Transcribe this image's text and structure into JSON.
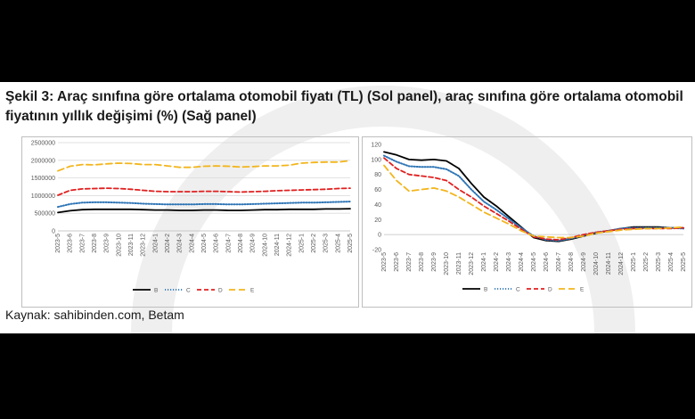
{
  "title": "Şekil 3: Araç sınıfına göre ortalama otomobil fiyatı (TL) (Sol panel), araç sınıfına göre ortalama otomobil fiyatının yıllık değişimi (%) (Sağ panel)",
  "source": "Kaynak: sahibinden.com, Betam",
  "colors": {
    "B": "#000000",
    "C": "#2e75b6",
    "D": "#e02020",
    "E": "#f2b51d"
  },
  "chart_data": [
    {
      "type": "line",
      "title": "",
      "xlabel": "",
      "ylabel": "",
      "ylim": [
        0,
        2500000
      ],
      "yticks": [
        "0",
        "500000",
        "1000000",
        "1500000",
        "2000000",
        "2500000"
      ],
      "categories": [
        "2023-5",
        "2023-6",
        "2023-7",
        "2023-8",
        "2023-9",
        "2023-10",
        "2023-11",
        "2023-12",
        "2024-1",
        "2024-2",
        "2024-3",
        "2024-4",
        "2024-5",
        "2024-6",
        "2024-7",
        "2024-8",
        "2024-9",
        "2024-10",
        "2024-11",
        "2024-12",
        "2025-1",
        "2025-2",
        "2025-3",
        "2025-4",
        "2025-5"
      ],
      "legend": "bottom",
      "grid": true,
      "series": [
        {
          "name": "B",
          "values": [
            520000,
            570000,
            600000,
            610000,
            610000,
            610000,
            610000,
            600000,
            590000,
            590000,
            580000,
            580000,
            590000,
            590000,
            580000,
            580000,
            590000,
            600000,
            600000,
            610000,
            610000,
            610000,
            620000,
            620000,
            630000
          ]
        },
        {
          "name": "C",
          "values": [
            680000,
            760000,
            800000,
            810000,
            810000,
            800000,
            790000,
            770000,
            760000,
            750000,
            750000,
            750000,
            760000,
            760000,
            750000,
            750000,
            760000,
            770000,
            780000,
            790000,
            800000,
            800000,
            810000,
            820000,
            830000
          ]
        },
        {
          "name": "D",
          "values": [
            1010000,
            1150000,
            1190000,
            1200000,
            1210000,
            1200000,
            1180000,
            1150000,
            1120000,
            1110000,
            1110000,
            1110000,
            1120000,
            1120000,
            1110000,
            1100000,
            1110000,
            1120000,
            1140000,
            1150000,
            1160000,
            1170000,
            1180000,
            1200000,
            1210000
          ]
        },
        {
          "name": "E",
          "values": [
            1700000,
            1830000,
            1880000,
            1870000,
            1900000,
            1920000,
            1910000,
            1880000,
            1880000,
            1840000,
            1800000,
            1800000,
            1830000,
            1840000,
            1830000,
            1810000,
            1820000,
            1840000,
            1840000,
            1860000,
            1920000,
            1940000,
            1950000,
            1950000,
            1990000
          ]
        }
      ]
    },
    {
      "type": "line",
      "title": "",
      "xlabel": "",
      "ylabel": "",
      "ylim": [
        -20,
        120
      ],
      "yticks": [
        "-20",
        "0",
        "20",
        "40",
        "60",
        "80",
        "100",
        "120"
      ],
      "categories": [
        "2023-5",
        "2023-6",
        "2023-7",
        "2023-8",
        "2023-9",
        "2023-10",
        "2023-11",
        "2023-12",
        "2024-1",
        "2024-2",
        "2024-3",
        "2024-4",
        "2024-5",
        "2024-6",
        "2024-7",
        "2024-8",
        "2024-9",
        "2024-10",
        "2024-11",
        "2024-12",
        "2025-1",
        "2025-2",
        "2025-3",
        "2025-4",
        "2025-5"
      ],
      "legend": "bottom",
      "grid": false,
      "series": [
        {
          "name": "B",
          "values": [
            110,
            106,
            100,
            99,
            100,
            98,
            88,
            68,
            50,
            38,
            24,
            10,
            -4,
            -8,
            -9,
            -6,
            -2,
            2,
            5,
            8,
            10,
            10,
            10,
            9,
            9
          ]
        },
        {
          "name": "C",
          "values": [
            105,
            97,
            91,
            90,
            90,
            87,
            78,
            60,
            44,
            33,
            21,
            9,
            -2,
            -7,
            -8,
            -5,
            -1,
            3,
            5,
            8,
            9,
            9,
            9,
            9,
            8
          ]
        },
        {
          "name": "D",
          "values": [
            102,
            88,
            80,
            78,
            76,
            72,
            60,
            50,
            38,
            28,
            18,
            7,
            -3,
            -6,
            -7,
            -4,
            0,
            3,
            5,
            7,
            8,
            8,
            8,
            8,
            9
          ]
        },
        {
          "name": "E",
          "values": [
            92,
            72,
            58,
            60,
            62,
            58,
            50,
            40,
            30,
            22,
            14,
            5,
            -2,
            -3,
            -4,
            -4,
            -2,
            2,
            4,
            6,
            7,
            8,
            8,
            9,
            10
          ]
        }
      ]
    }
  ]
}
